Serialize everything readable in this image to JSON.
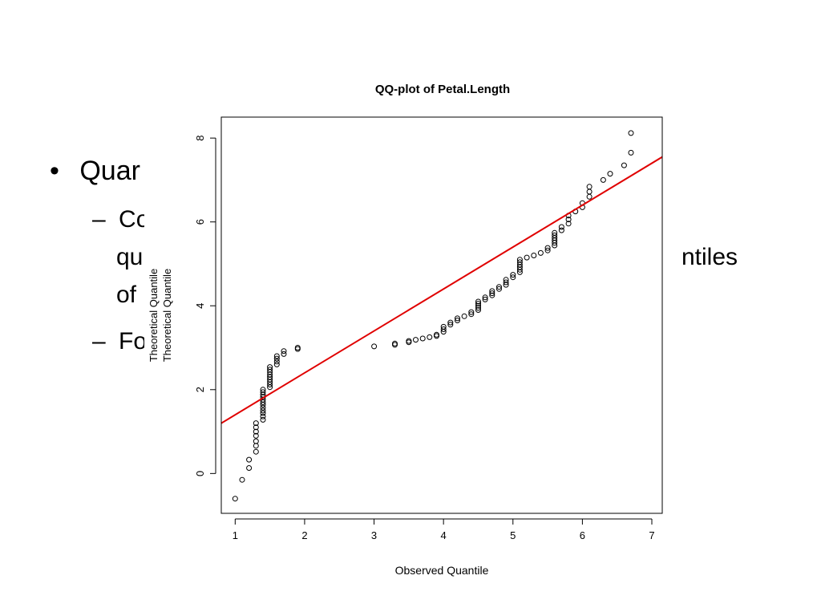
{
  "slide": {
    "bullets": [
      {
        "symbol": "•",
        "text": "Quar"
      },
      {
        "symbol": "–",
        "text": "Co"
      },
      {
        "symbol": "",
        "text": "qu"
      },
      {
        "symbol": "",
        "text": "of"
      },
      {
        "symbol": "–",
        "text": "Fo"
      }
    ],
    "right_fragment": "ntiles"
  },
  "chart_data": {
    "type": "scatter",
    "title": "QQ-plot of Petal.Length",
    "xlabel": "Observed Quantile",
    "ylabel": "Theoretical Quantile",
    "ylabel_duplicate": "Theoretical Quantile",
    "xlim": [
      0.8,
      7.15
    ],
    "ylim": [
      -0.95,
      8.5
    ],
    "xticks": [
      1,
      2,
      3,
      4,
      5,
      6,
      7
    ],
    "yticks": [
      0,
      2,
      4,
      6,
      8
    ],
    "grid": false,
    "legend": "none",
    "point_color": "#000000",
    "line_color": "#e00000",
    "reference_line": {
      "intercept": 0.4,
      "slope": 1.0
    },
    "points": [
      [
        1.0,
        -0.6
      ],
      [
        1.1,
        -0.15
      ],
      [
        1.2,
        0.13
      ],
      [
        1.2,
        0.33
      ],
      [
        1.3,
        0.52
      ],
      [
        1.3,
        0.66
      ],
      [
        1.3,
        0.77
      ],
      [
        1.3,
        0.9
      ],
      [
        1.3,
        1.0
      ],
      [
        1.3,
        1.1
      ],
      [
        1.3,
        1.2
      ],
      [
        1.4,
        1.28
      ],
      [
        1.4,
        1.36
      ],
      [
        1.4,
        1.44
      ],
      [
        1.4,
        1.5
      ],
      [
        1.4,
        1.57
      ],
      [
        1.4,
        1.64
      ],
      [
        1.4,
        1.7
      ],
      [
        1.4,
        1.76
      ],
      [
        1.4,
        1.82
      ],
      [
        1.4,
        1.88
      ],
      [
        1.4,
        1.94
      ],
      [
        1.4,
        2.0
      ],
      [
        1.5,
        2.06
      ],
      [
        1.5,
        2.12
      ],
      [
        1.5,
        2.18
      ],
      [
        1.5,
        2.24
      ],
      [
        1.5,
        2.3
      ],
      [
        1.5,
        2.36
      ],
      [
        1.5,
        2.42
      ],
      [
        1.5,
        2.48
      ],
      [
        1.5,
        2.54
      ],
      [
        1.6,
        2.6
      ],
      [
        1.6,
        2.67
      ],
      [
        1.6,
        2.74
      ],
      [
        1.6,
        2.8
      ],
      [
        1.7,
        2.85
      ],
      [
        1.7,
        2.92
      ],
      [
        1.9,
        2.97
      ],
      [
        1.9,
        3.0
      ],
      [
        3.0,
        3.03
      ],
      [
        3.3,
        3.07
      ],
      [
        3.3,
        3.1
      ],
      [
        3.5,
        3.13
      ],
      [
        3.5,
        3.16
      ],
      [
        3.6,
        3.19
      ],
      [
        3.7,
        3.22
      ],
      [
        3.8,
        3.25
      ],
      [
        3.9,
        3.28
      ],
      [
        3.9,
        3.31
      ],
      [
        4.0,
        3.38
      ],
      [
        4.0,
        3.44
      ],
      [
        4.0,
        3.5
      ],
      [
        4.1,
        3.55
      ],
      [
        4.1,
        3.6
      ],
      [
        4.2,
        3.65
      ],
      [
        4.2,
        3.7
      ],
      [
        4.3,
        3.75
      ],
      [
        4.4,
        3.8
      ],
      [
        4.4,
        3.85
      ],
      [
        4.5,
        3.9
      ],
      [
        4.5,
        3.95
      ],
      [
        4.5,
        4.0
      ],
      [
        4.5,
        4.05
      ],
      [
        4.5,
        4.1
      ],
      [
        4.6,
        4.15
      ],
      [
        4.6,
        4.2
      ],
      [
        4.7,
        4.25
      ],
      [
        4.7,
        4.3
      ],
      [
        4.7,
        4.35
      ],
      [
        4.8,
        4.4
      ],
      [
        4.8,
        4.45
      ],
      [
        4.9,
        4.5
      ],
      [
        4.9,
        4.56
      ],
      [
        4.9,
        4.62
      ],
      [
        5.0,
        4.68
      ],
      [
        5.0,
        4.74
      ],
      [
        5.1,
        4.8
      ],
      [
        5.1,
        4.86
      ],
      [
        5.1,
        4.92
      ],
      [
        5.1,
        4.98
      ],
      [
        5.1,
        5.04
      ],
      [
        5.1,
        5.1
      ],
      [
        5.2,
        5.15
      ],
      [
        5.3,
        5.2
      ],
      [
        5.4,
        5.26
      ],
      [
        5.5,
        5.32
      ],
      [
        5.5,
        5.38
      ],
      [
        5.6,
        5.44
      ],
      [
        5.6,
        5.5
      ],
      [
        5.6,
        5.56
      ],
      [
        5.6,
        5.62
      ],
      [
        5.6,
        5.68
      ],
      [
        5.6,
        5.74
      ],
      [
        5.7,
        5.8
      ],
      [
        5.7,
        5.88
      ],
      [
        5.8,
        5.96
      ],
      [
        5.8,
        6.06
      ],
      [
        5.8,
        6.15
      ],
      [
        5.9,
        6.25
      ],
      [
        6.0,
        6.35
      ],
      [
        6.0,
        6.45
      ],
      [
        6.1,
        6.6
      ],
      [
        6.1,
        6.72
      ],
      [
        6.1,
        6.84
      ],
      [
        6.3,
        7.0
      ],
      [
        6.4,
        7.15
      ],
      [
        6.6,
        7.35
      ],
      [
        6.7,
        7.65
      ],
      [
        6.7,
        8.12
      ]
    ]
  }
}
